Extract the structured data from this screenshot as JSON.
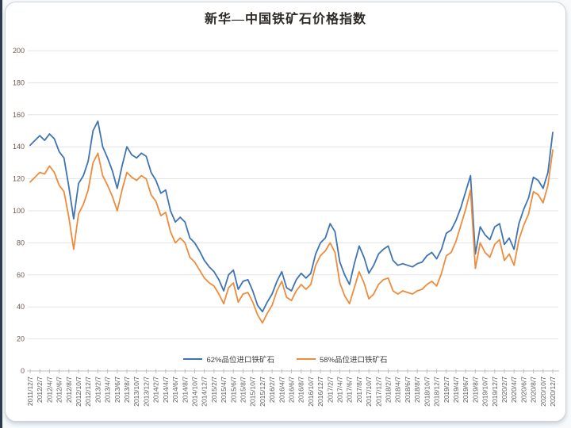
{
  "window": {
    "background": "#f7f9fa",
    "frame_border_color": "#ccd3d9",
    "left_strip_color": "#2e3a50"
  },
  "axes": {
    "y_label_color": "#6d564e",
    "x_label_color": "#595959",
    "axis_line_color": "#bfbfbf",
    "gridline_color": "#e3e3e3"
  },
  "chart_data": {
    "type": "line",
    "title": "新华—中国铁矿石价格指数",
    "xlabel": "",
    "ylabel": "",
    "ylim": [
      0,
      200
    ],
    "y_ticks": [
      0,
      20,
      40,
      60,
      80,
      100,
      120,
      140,
      160,
      180,
      200
    ],
    "grid": true,
    "legend_position": "bottom-center",
    "x_frequency": "monthly (labels every 2 months)",
    "x_tick_labels": [
      "2011/12/7",
      "2012/2/7",
      "2012/4/7",
      "2012/6/7",
      "2012/8/7",
      "2012/10/7",
      "2012/12/7",
      "2013/2/7",
      "2013/4/7",
      "2013/6/7",
      "2013/8/7",
      "2013/10/7",
      "2013/12/7",
      "2014/2/7",
      "2014/4/7",
      "2014/6/7",
      "2014/8/7",
      "2014/10/7",
      "2014/12/7",
      "2015/2/7",
      "2015/4/7",
      "2015/6/7",
      "2015/8/7",
      "2015/10/7",
      "2015/12/7",
      "2016/2/7",
      "2016/4/7",
      "2016/6/7",
      "2016/8/7",
      "2016/10/7",
      "2016/12/7",
      "2017/2/7",
      "2017/4/7",
      "2017/6/7",
      "2017/8/7",
      "2017/10/7",
      "2017/12/7",
      "2018/2/7",
      "2018/4/7",
      "2018/6/7",
      "2018/8/7",
      "2018/10/7",
      "2018/12/7",
      "2019/2/7",
      "2019/4/7",
      "2019/6/7",
      "2019/8/7",
      "2019/10/7",
      "2019/12/7",
      "2020/2/7",
      "2020/4/7",
      "2020/6/7",
      "2020/8/7",
      "2020/10/7",
      "2020/12/7"
    ],
    "series": [
      {
        "name": "62%品位进口铁矿石",
        "color": "#3E74B4",
        "values": [
          141,
          144,
          147,
          144,
          148,
          145,
          137,
          133,
          115,
          95,
          117,
          122,
          131,
          150,
          156,
          140,
          133,
          125,
          114,
          128,
          140,
          135,
          133,
          136,
          134,
          124,
          119,
          111,
          113,
          100,
          93,
          96,
          93,
          83,
          80,
          75,
          69,
          65,
          62,
          57,
          50,
          60,
          63,
          51,
          56,
          57,
          50,
          41,
          37,
          43,
          48,
          56,
          62,
          52,
          50,
          57,
          61,
          58,
          61,
          73,
          80,
          83,
          92,
          87,
          68,
          60,
          54,
          67,
          78,
          71,
          61,
          66,
          73,
          76,
          78,
          69,
          66,
          67,
          66,
          65,
          67,
          68,
          72,
          74,
          70,
          76,
          86,
          88,
          94,
          102,
          112,
          122,
          73,
          90,
          85,
          82,
          90,
          92,
          79,
          83,
          76,
          92,
          101,
          108,
          121,
          119,
          114,
          124,
          149
        ]
      },
      {
        "name": "58%品位进口铁矿石",
        "color": "#ED8C3C",
        "values": [
          118,
          121,
          124,
          123,
          128,
          124,
          116,
          112,
          96,
          76,
          98,
          104,
          113,
          130,
          136,
          122,
          116,
          109,
          100,
          113,
          124,
          121,
          119,
          122,
          120,
          110,
          106,
          97,
          99,
          87,
          80,
          83,
          80,
          71,
          68,
          63,
          58,
          55,
          53,
          48,
          42,
          52,
          55,
          43,
          48,
          49,
          43,
          35,
          30,
          36,
          41,
          50,
          56,
          46,
          44,
          50,
          54,
          51,
          54,
          66,
          72,
          75,
          80,
          74,
          55,
          47,
          42,
          52,
          62,
          55,
          45,
          48,
          54,
          57,
          58,
          50,
          48,
          50,
          49,
          48,
          50,
          51,
          54,
          56,
          53,
          61,
          72,
          74,
          81,
          91,
          101,
          113,
          64,
          80,
          74,
          71,
          79,
          82,
          69,
          73,
          66,
          82,
          91,
          98,
          112,
          110,
          105,
          116,
          138
        ]
      }
    ]
  }
}
